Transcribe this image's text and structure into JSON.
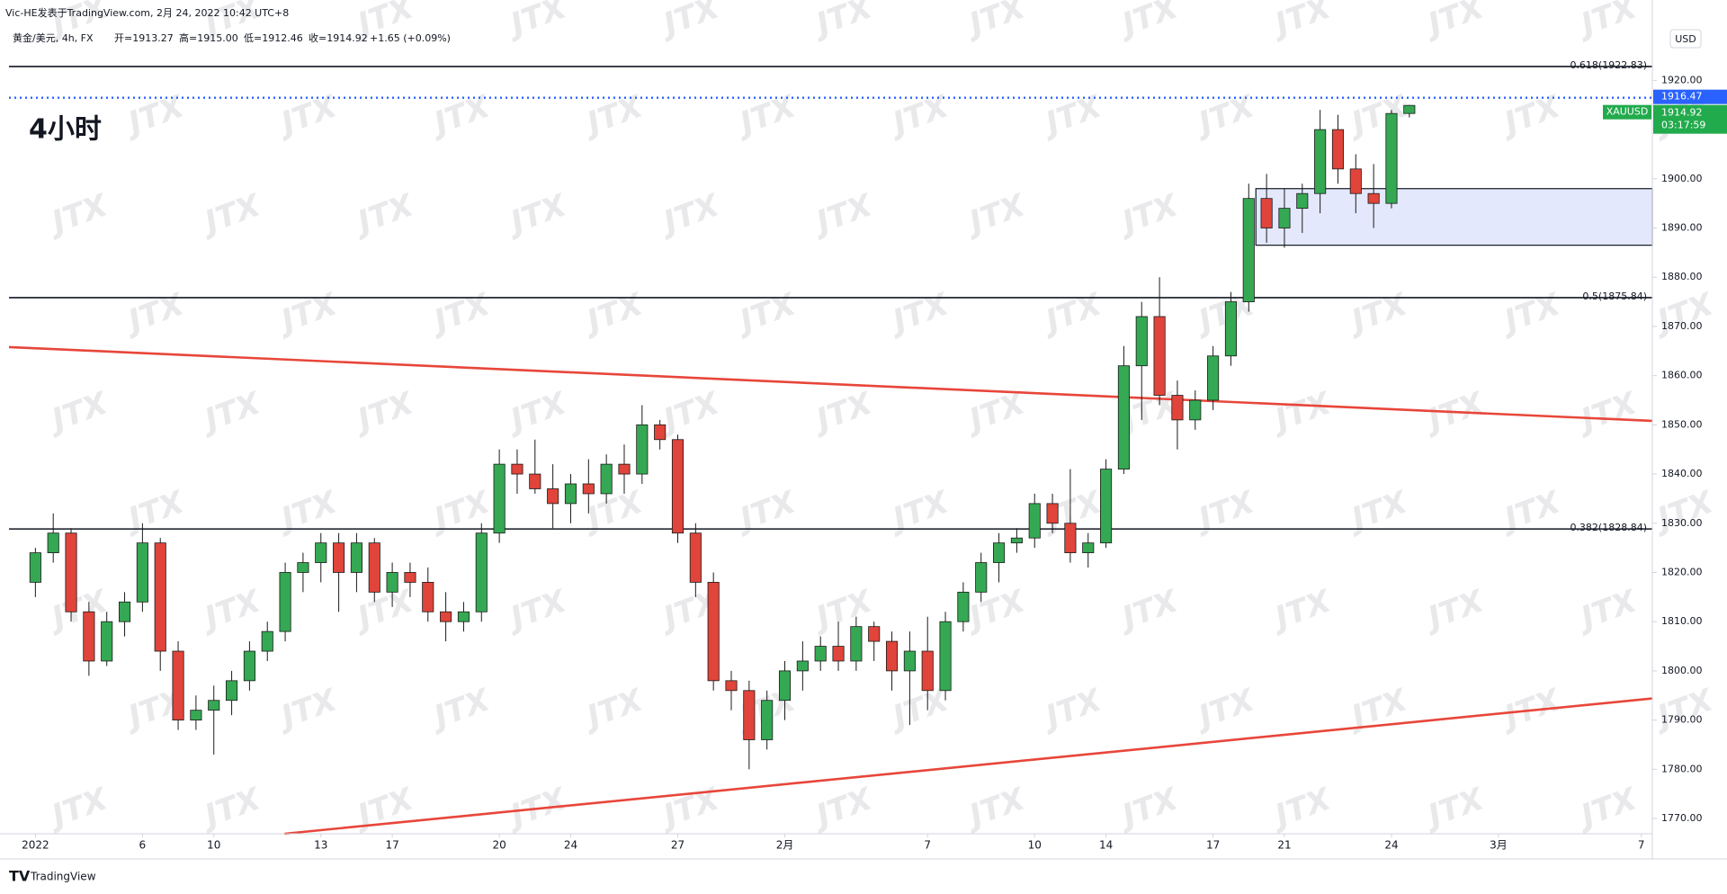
{
  "header": {
    "publisher": "Vic-HE发表于TradingView.com, 2月 24, 2022 10:42 UTC+8",
    "symbol": "黄金/美元, 4h, FX",
    "open_label": "开=1913.27",
    "high_label": "高=1915.00",
    "low_label": "低=1912.46",
    "close_label": "收=1914.92",
    "change": "+1.65 (+0.09%)"
  },
  "watermark": "JTX",
  "footer": "TradingView",
  "chart_data": {
    "type": "candlestick",
    "annotation": "4小时",
    "currency": "USD",
    "up_color": "#35a853",
    "down_color": "#e0443a",
    "grid": false,
    "xlim": [
      -0.74,
      45.31
    ],
    "ylim": [
      1766.9,
      1931.4
    ],
    "xticks": [
      {
        "value": 0,
        "label": "2022"
      },
      {
        "value": 3,
        "label": "6"
      },
      {
        "value": 5,
        "label": "10"
      },
      {
        "value": 8,
        "label": "13"
      },
      {
        "value": 10,
        "label": "17"
      },
      {
        "value": 13,
        "label": "20"
      },
      {
        "value": 15,
        "label": "24"
      },
      {
        "value": 18,
        "label": "27"
      },
      {
        "value": 21,
        "label": "2月"
      },
      {
        "value": 25,
        "label": "7"
      },
      {
        "value": 28,
        "label": "10"
      },
      {
        "value": 30,
        "label": "14"
      },
      {
        "value": 33,
        "label": "17"
      },
      {
        "value": 35,
        "label": "21"
      },
      {
        "value": 38,
        "label": "24"
      },
      {
        "value": 41,
        "label": "3月"
      },
      {
        "value": 45,
        "label": "7"
      }
    ],
    "yticks": [
      {
        "value": 1770,
        "label": "1770.00"
      },
      {
        "value": 1780,
        "label": "1780.00"
      },
      {
        "value": 1790,
        "label": "1790.00"
      },
      {
        "value": 1800,
        "label": "1800.00"
      },
      {
        "value": 1810,
        "label": "1810.00"
      },
      {
        "value": 1820,
        "label": "1820.00"
      },
      {
        "value": 1830,
        "label": "1830.00"
      },
      {
        "value": 1840,
        "label": "1840.00"
      },
      {
        "value": 1850,
        "label": "1850.00"
      },
      {
        "value": 1860,
        "label": "1860.00"
      },
      {
        "value": 1870,
        "label": "1870.00"
      },
      {
        "value": 1880,
        "label": "1880.00"
      },
      {
        "value": 1890,
        "label": "1890.00"
      },
      {
        "value": 1900,
        "label": "1900.00"
      },
      {
        "value": 1910,
        "label": "1910.00"
      },
      {
        "value": 1920,
        "label": "1920.00"
      }
    ],
    "x": [
      0,
      0.5,
      1,
      1.5,
      2,
      2.5,
      3,
      3.5,
      4,
      4.5,
      5,
      5.5,
      6,
      6.5,
      7,
      7.5,
      8,
      8.5,
      9,
      9.5,
      10,
      10.5,
      11,
      11.5,
      12,
      12.5,
      13,
      13.5,
      14,
      14.5,
      15,
      15.5,
      16,
      16.5,
      17,
      17.5,
      18,
      18.5,
      19,
      19.5,
      20,
      20.5,
      21,
      21.5,
      22,
      22.5,
      23,
      23.5,
      24,
      24.5,
      25,
      25.5,
      26,
      26.5,
      27,
      27.5,
      28,
      28.5,
      29,
      29.5,
      30,
      30.5,
      31,
      31.5,
      32,
      32.5,
      33,
      33.5,
      34,
      34.5,
      35,
      35.5,
      36,
      36.5,
      37,
      37.5,
      38,
      38.5
    ],
    "open": [
      1818,
      1824,
      1828,
      1812,
      1802,
      1810,
      1814,
      1826,
      1804,
      1790,
      1792,
      1794,
      1798,
      1804,
      1808,
      1820,
      1822,
      1826,
      1820,
      1826,
      1816,
      1820,
      1818,
      1812,
      1810,
      1812,
      1828,
      1842,
      1840,
      1837,
      1834,
      1838,
      1836,
      1842,
      1840,
      1850,
      1847,
      1828,
      1818,
      1798,
      1796,
      1786,
      1794,
      1800,
      1802,
      1805,
      1802,
      1809,
      1806,
      1800,
      1804,
      1796,
      1810,
      1816,
      1822,
      1826,
      1827,
      1834,
      1830,
      1824,
      1826,
      1841,
      1862,
      1872,
      1856,
      1851,
      1855,
      1864,
      1875,
      1896,
      1890,
      1894,
      1897,
      1910,
      1902,
      1897,
      1895,
      1913.27
    ],
    "high": [
      1825,
      1832,
      1829,
      1814,
      1812,
      1816,
      1830,
      1827,
      1806,
      1795,
      1797,
      1800,
      1806,
      1810,
      1822,
      1824,
      1828,
      1828,
      1828,
      1827,
      1822,
      1822,
      1821,
      1816,
      1814,
      1830,
      1845,
      1845,
      1847,
      1842,
      1840,
      1843,
      1844,
      1846,
      1854,
      1851,
      1848,
      1830,
      1820,
      1800,
      1798,
      1796,
      1802,
      1806,
      1807,
      1810,
      1811,
      1810,
      1808,
      1808,
      1811,
      1812,
      1818,
      1824,
      1828,
      1829,
      1836,
      1836,
      1841,
      1828,
      1843,
      1866,
      1875,
      1880,
      1859,
      1857,
      1866,
      1877,
      1899,
      1901,
      1898,
      1899,
      1914,
      1913,
      1905,
      1903,
      1914,
      1915.0
    ],
    "low": [
      1815,
      1822,
      1810,
      1799,
      1801,
      1807,
      1812,
      1800,
      1788,
      1788,
      1783,
      1791,
      1796,
      1802,
      1806,
      1816,
      1818,
      1812,
      1816,
      1814,
      1813,
      1815,
      1810,
      1806,
      1808,
      1810,
      1826,
      1836,
      1836,
      1829,
      1830,
      1832,
      1834,
      1836,
      1838,
      1845,
      1826,
      1815,
      1796,
      1792,
      1780,
      1784,
      1790,
      1796,
      1800,
      1800,
      1800,
      1802,
      1796,
      1789,
      1792,
      1794,
      1808,
      1814,
      1818,
      1824,
      1825,
      1828,
      1822,
      1821,
      1825,
      1840,
      1851,
      1854,
      1845,
      1849,
      1853,
      1862,
      1873,
      1887,
      1886,
      1889,
      1893,
      1899,
      1893,
      1890,
      1894,
      1912.46
    ],
    "close": [
      1824,
      1828,
      1812,
      1802,
      1810,
      1814,
      1826,
      1804,
      1790,
      1792,
      1794,
      1798,
      1804,
      1808,
      1820,
      1822,
      1826,
      1820,
      1826,
      1816,
      1820,
      1818,
      1812,
      1810,
      1812,
      1828,
      1842,
      1840,
      1837,
      1834,
      1838,
      1836,
      1842,
      1840,
      1850,
      1847,
      1828,
      1818,
      1798,
      1796,
      1786,
      1794,
      1800,
      1802,
      1805,
      1802,
      1809,
      1806,
      1800,
      1804,
      1796,
      1810,
      1816,
      1822,
      1826,
      1827,
      1834,
      1830,
      1824,
      1826,
      1841,
      1862,
      1872,
      1856,
      1851,
      1855,
      1864,
      1875,
      1896,
      1890,
      1894,
      1897,
      1910,
      1902,
      1897,
      1895,
      1913.27,
      1914.92
    ],
    "levels": [
      {
        "value": 1922.83,
        "label": "0.618(1922.83)"
      },
      {
        "value": 1875.84,
        "label": "0.5(1875.84)"
      },
      {
        "value": 1828.84,
        "label": "0.382(1828.84)"
      }
    ],
    "level_color": "#131722",
    "trendlines": [
      {
        "x": [
          -0.74,
          45.31
        ],
        "y": [
          1865.8,
          1850.8
        ]
      },
      {
        "x": [
          6.98,
          45.31
        ],
        "y": [
          1766.9,
          1794.4
        ]
      }
    ],
    "trendline_color": "#e8463a",
    "zone": {
      "x": [
        34.2,
        45.31
      ],
      "y": [
        1886.5,
        1898
      ],
      "color": "#e3e8fd"
    },
    "price_line": {
      "value": 1916.47,
      "color": "#2962ff"
    },
    "last_price": {
      "symbol": "XAUUSD",
      "value": 1914.92,
      "countdown": "03:17:59",
      "color": "#22ab4c"
    }
  }
}
